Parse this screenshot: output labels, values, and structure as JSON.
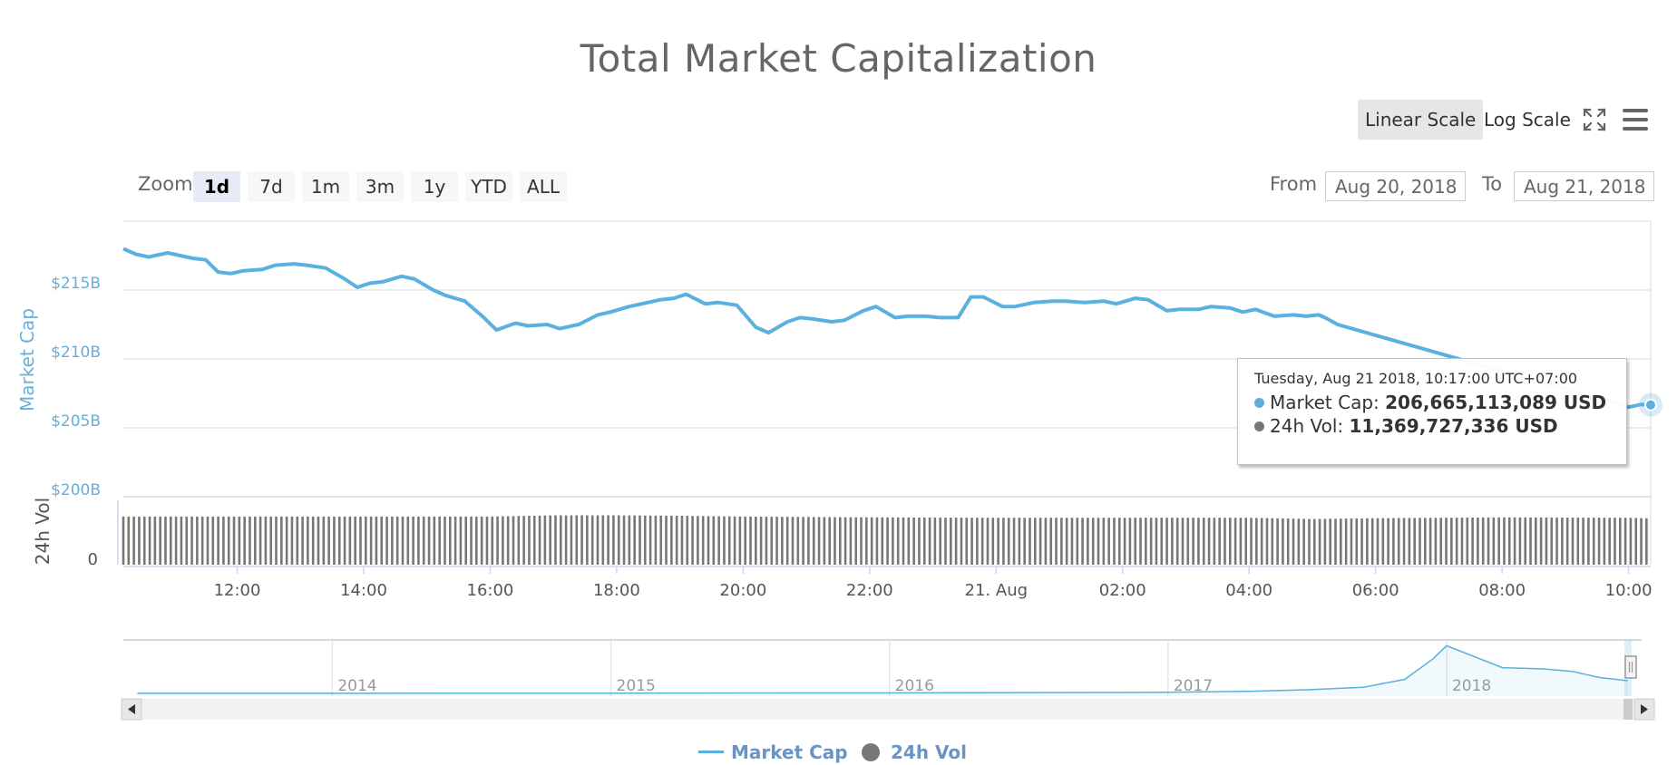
{
  "chart": {
    "title": "Total Market Capitalization",
    "scale_buttons": {
      "linear": "Linear Scale",
      "log": "Log Scale"
    },
    "zoom": {
      "label": "Zoom",
      "options": [
        "1d",
        "7d",
        "1m",
        "3m",
        "1y",
        "YTD",
        "ALL"
      ],
      "selected": "1d"
    },
    "range": {
      "from_label": "From",
      "from_value": "Aug 20, 2018",
      "to_label": "To",
      "to_value": "Aug 21, 2018"
    },
    "tooltip": {
      "date": "Tuesday, Aug 21 2018, 10:17:00 UTC+07:00",
      "market_cap_label": "Market Cap:",
      "market_cap_value": "206,665,113,089 USD",
      "vol_label": "24h Vol:",
      "vol_value": "11,369,727,336 USD"
    },
    "legend": {
      "market_cap": "Market Cap",
      "vol": "24h Vol"
    },
    "navigator_years": [
      "2014",
      "2015",
      "2016",
      "2017",
      "2018"
    ]
  },
  "colors": {
    "market_cap": "#5ab0de",
    "volume": "#777777",
    "axis_label": "#6aaed6",
    "grid": "#e6e6e6"
  },
  "icons": {
    "fullscreen": "fullscreen-icon",
    "menu": "menu-icon",
    "nav_left": "arrow-left-icon",
    "nav_right": "arrow-right-icon"
  },
  "chart_data": {
    "type": "line",
    "title": "Total Market Capitalization",
    "x_unit": "hours since Aug 20 2018 00:00 (UTC+07:00)",
    "x_tick_labels": [
      "12:00",
      "14:00",
      "16:00",
      "18:00",
      "20:00",
      "22:00",
      "21. Aug",
      "02:00",
      "04:00",
      "06:00",
      "08:00",
      "10:00"
    ],
    "x_tick_hours": [
      12,
      14,
      16,
      18,
      20,
      22,
      24,
      26,
      28,
      30,
      32,
      34
    ],
    "xlim": [
      10.2,
      34.35
    ],
    "ylabel": "Market Cap",
    "y_tick_labels": [
      "$200B",
      "$205B",
      "$210B",
      "$215B"
    ],
    "y_ticks": [
      200,
      205,
      210,
      215
    ],
    "ylim": [
      200,
      220
    ],
    "series": [
      {
        "name": "Market Cap",
        "unit": "B USD",
        "x": [
          10.2,
          10.4,
          10.6,
          10.9,
          11.1,
          11.3,
          11.5,
          11.7,
          11.9,
          12.1,
          12.4,
          12.6,
          12.9,
          13.1,
          13.4,
          13.7,
          13.9,
          14.1,
          14.3,
          14.6,
          14.8,
          15.1,
          15.3,
          15.6,
          15.9,
          16.1,
          16.4,
          16.6,
          16.9,
          17.1,
          17.4,
          17.7,
          17.9,
          18.2,
          18.4,
          18.7,
          18.9,
          19.1,
          19.4,
          19.6,
          19.9,
          20.2,
          20.4,
          20.7,
          20.9,
          21.1,
          21.4,
          21.6,
          21.9,
          22.1,
          22.4,
          22.6,
          22.9,
          23.1,
          23.4,
          23.6,
          23.8,
          24.1,
          24.3,
          24.6,
          24.9,
          25.1,
          25.4,
          25.7,
          25.9,
          26.2,
          26.4,
          26.7,
          26.9,
          27.2,
          27.4,
          27.7,
          27.9,
          28.1,
          28.4,
          28.7,
          28.9,
          29.1,
          29.2,
          29.4,
          34.0,
          34.2,
          34.35
        ],
        "values": [
          218.0,
          217.6,
          217.4,
          217.7,
          217.5,
          217.3,
          217.2,
          216.3,
          216.2,
          216.4,
          216.5,
          216.8,
          216.9,
          216.8,
          216.6,
          215.8,
          215.2,
          215.5,
          215.6,
          216.0,
          215.8,
          215.0,
          214.6,
          214.2,
          213.0,
          212.1,
          212.6,
          212.4,
          212.5,
          212.2,
          212.5,
          213.2,
          213.4,
          213.8,
          214.0,
          214.3,
          214.4,
          214.7,
          214.0,
          214.1,
          213.9,
          212.3,
          211.9,
          212.7,
          213.0,
          212.9,
          212.7,
          212.8,
          213.5,
          213.8,
          213.0,
          213.1,
          213.1,
          213.0,
          213.0,
          214.5,
          214.5,
          213.8,
          213.8,
          214.1,
          214.2,
          214.2,
          214.1,
          214.2,
          214.0,
          214.4,
          214.3,
          213.5,
          213.6,
          213.6,
          213.8,
          213.7,
          213.4,
          213.6,
          213.1,
          213.2,
          213.1,
          213.2,
          213.0,
          212.5,
          206.5,
          206.7,
          206.665
        ]
      },
      {
        "name": "24h Vol",
        "type": "bar",
        "unit": "B USD",
        "hours": [
          10.2,
          12,
          14,
          16,
          17,
          18,
          19,
          20,
          22,
          24,
          26,
          28,
          29,
          30,
          32,
          34,
          34.35
        ],
        "values": [
          11.8,
          11.8,
          11.8,
          11.8,
          12.1,
          12.1,
          12.0,
          11.8,
          11.6,
          11.5,
          11.5,
          11.5,
          11.2,
          11.4,
          11.6,
          11.5,
          11.37
        ]
      }
    ],
    "volume_axis": {
      "label": "24h Vol",
      "tick_labels": [
        "0"
      ],
      "ylim": [
        0,
        14
      ]
    },
    "tooltip_point": {
      "x": 34.35,
      "y": 206.665
    },
    "navigator": {
      "x_labels": [
        "2014",
        "2015",
        "2016",
        "2017",
        "2018"
      ],
      "x": [
        2013.3,
        2014,
        2015,
        2016,
        2017.0,
        2017.3,
        2017.5,
        2017.7,
        2017.85,
        2017.95,
        2018.0,
        2018.1,
        2018.2,
        2018.35,
        2018.45,
        2018.55,
        2018.65
      ],
      "values": [
        1.5,
        2,
        4,
        7,
        18,
        35,
        60,
        100,
        230,
        560,
        780,
        600,
        420,
        400,
        360,
        260,
        207
      ]
    }
  }
}
